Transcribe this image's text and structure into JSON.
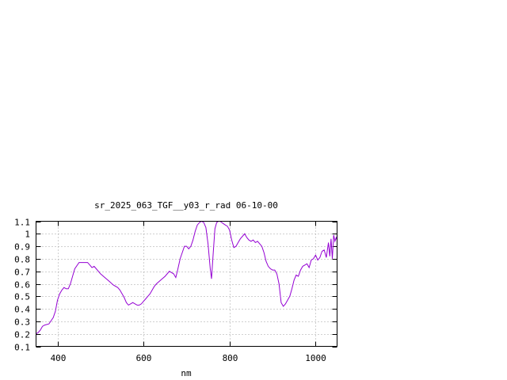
{
  "chart_data": {
    "type": "line",
    "title": "sr_2025_063_TGF__y03_r_rad 06-10-00",
    "xlabel": "nm",
    "ylabel": "",
    "xlim": [
      350,
      1050
    ],
    "ylim": [
      0.1,
      1.1
    ],
    "xticks": [
      400,
      600,
      800,
      1000
    ],
    "yticks": [
      0.1,
      0.2,
      0.3,
      0.4,
      0.5,
      0.6,
      0.7,
      0.8,
      0.9,
      1,
      1.1
    ],
    "xtick_labels": [
      "400",
      "600",
      "800",
      "1000"
    ],
    "ytick_labels": [
      "0.1",
      "0.2",
      "0.3",
      "0.4",
      "0.5",
      "0.6",
      "0.7",
      "0.8",
      "0.9",
      "1",
      "1.1"
    ],
    "grid": true,
    "series": [
      {
        "name": "",
        "color": "#9400d3",
        "x": [
          350,
          355,
          360,
          365,
          370,
          380,
          390,
          395,
          400,
          405,
          410,
          415,
          420,
          425,
          430,
          435,
          440,
          450,
          455,
          460,
          470,
          475,
          480,
          485,
          490,
          495,
          500,
          510,
          520,
          530,
          540,
          545,
          550,
          555,
          560,
          565,
          570,
          575,
          580,
          585,
          590,
          595,
          600,
          605,
          610,
          615,
          620,
          625,
          630,
          640,
          650,
          660,
          670,
          675,
          680,
          685,
          690,
          695,
          700,
          705,
          710,
          715,
          720,
          725,
          730,
          735,
          740,
          745,
          750,
          755,
          758,
          762,
          766,
          770,
          774,
          778,
          782,
          786,
          790,
          795,
          800,
          805,
          810,
          815,
          820,
          825,
          830,
          835,
          840,
          845,
          850,
          855,
          860,
          865,
          870,
          875,
          880,
          885,
          890,
          895,
          900,
          905,
          910,
          915,
          920,
          925,
          930,
          935,
          940,
          945,
          950,
          955,
          960,
          965,
          970,
          975,
          980,
          985,
          990,
          995,
          1000,
          1005,
          1010,
          1015,
          1020,
          1025,
          1030,
          1033,
          1036,
          1039,
          1042,
          1045,
          1048,
          1050
        ],
        "y": [
          0.2,
          0.21,
          0.23,
          0.26,
          0.27,
          0.28,
          0.33,
          0.38,
          0.47,
          0.52,
          0.55,
          0.57,
          0.56,
          0.56,
          0.6,
          0.66,
          0.72,
          0.77,
          0.77,
          0.77,
          0.77,
          0.75,
          0.73,
          0.74,
          0.72,
          0.7,
          0.68,
          0.65,
          0.62,
          0.59,
          0.57,
          0.55,
          0.52,
          0.49,
          0.45,
          0.43,
          0.44,
          0.45,
          0.44,
          0.43,
          0.43,
          0.44,
          0.46,
          0.48,
          0.5,
          0.52,
          0.55,
          0.58,
          0.6,
          0.63,
          0.66,
          0.7,
          0.68,
          0.65,
          0.72,
          0.8,
          0.85,
          0.9,
          0.9,
          0.88,
          0.9,
          0.95,
          1.02,
          1.07,
          1.09,
          1.1,
          1.09,
          1.05,
          0.92,
          0.72,
          0.64,
          0.85,
          1.04,
          1.09,
          1.1,
          1.1,
          1.09,
          1.08,
          1.07,
          1.06,
          1.03,
          0.95,
          0.89,
          0.9,
          0.93,
          0.96,
          0.98,
          1.0,
          0.97,
          0.95,
          0.94,
          0.95,
          0.93,
          0.94,
          0.92,
          0.9,
          0.85,
          0.78,
          0.74,
          0.72,
          0.71,
          0.71,
          0.68,
          0.6,
          0.45,
          0.42,
          0.44,
          0.47,
          0.5,
          0.56,
          0.63,
          0.67,
          0.66,
          0.71,
          0.74,
          0.75,
          0.76,
          0.73,
          0.79,
          0.8,
          0.83,
          0.79,
          0.81,
          0.86,
          0.87,
          0.81,
          0.93,
          0.82,
          0.96,
          0.8,
          0.99,
          0.94,
          0.97,
          0.95
        ]
      }
    ]
  }
}
